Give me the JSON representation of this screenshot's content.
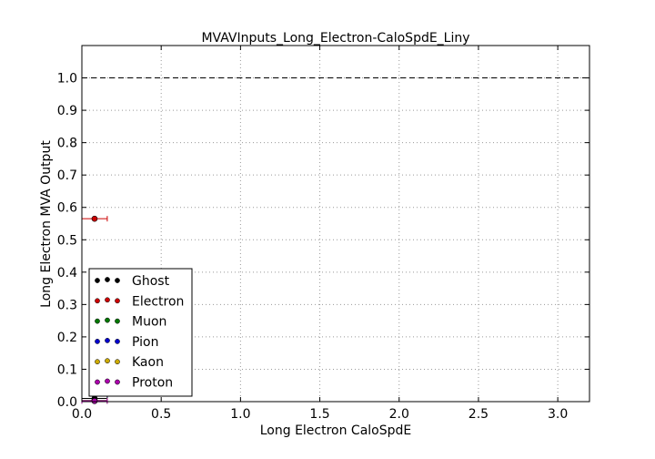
{
  "chart_data": {
    "type": "scatter",
    "title": "MVAVInputs_Long_Electron-CaloSpdE_Liny",
    "xlabel": "Long Electron CaloSpdE",
    "ylabel": "Long Electron MVA Output",
    "xlim": [
      0.0,
      3.2
    ],
    "ylim": [
      0.0,
      1.1
    ],
    "xticks": [
      0.0,
      0.5,
      1.0,
      1.5,
      2.0,
      2.5,
      3.0
    ],
    "xtick_labels": [
      "0.0",
      "0.5",
      "1.0",
      "1.5",
      "2.0",
      "2.5",
      "3.0"
    ],
    "yticks": [
      0.0,
      0.1,
      0.2,
      0.3,
      0.4,
      0.5,
      0.6,
      0.7,
      0.8,
      0.9,
      1.0
    ],
    "ytick_labels": [
      "0.0",
      "0.1",
      "0.2",
      "0.3",
      "0.4",
      "0.5",
      "0.6",
      "0.7",
      "0.8",
      "0.9",
      "1.0"
    ],
    "grid": true,
    "reference_line": {
      "y": 1.0,
      "style": "dashed",
      "color": "#000000"
    },
    "legend_position": "lower-left",
    "series": [
      {
        "name": "Ghost",
        "color": "#000000",
        "points": [
          {
            "x": 0.08,
            "y": 0.01,
            "xerr": 0.08
          }
        ]
      },
      {
        "name": "Electron",
        "color": "#cc0000",
        "points": [
          {
            "x": 0.08,
            "y": 0.565,
            "xerr": 0.08
          }
        ]
      },
      {
        "name": "Muon",
        "color": "#007700",
        "points": [
          {
            "x": 0.08,
            "y": 0.002,
            "xerr": 0.08
          }
        ]
      },
      {
        "name": "Pion",
        "color": "#0000cc",
        "points": [
          {
            "x": 0.08,
            "y": 0.004,
            "xerr": 0.08
          }
        ]
      },
      {
        "name": "Kaon",
        "color": "#ccaa00",
        "points": [
          {
            "x": 0.08,
            "y": 0.003,
            "xerr": 0.08
          }
        ]
      },
      {
        "name": "Proton",
        "color": "#aa00aa",
        "points": [
          {
            "x": 0.08,
            "y": 0.002,
            "xerr": 0.08
          }
        ]
      }
    ]
  }
}
